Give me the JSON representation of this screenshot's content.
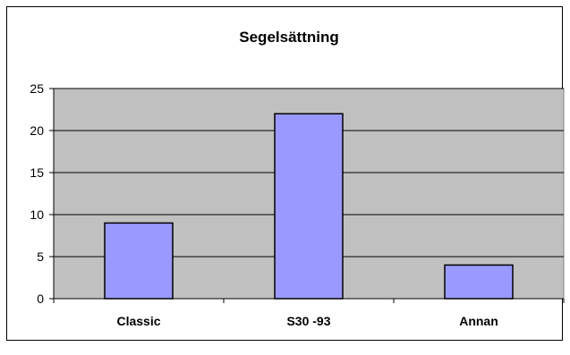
{
  "chart_data": {
    "type": "bar",
    "title": "Segelsättning",
    "categories": [
      "Classic",
      "S30 -93",
      "Annan"
    ],
    "values": [
      9,
      22,
      4
    ],
    "ylim": [
      0,
      25
    ],
    "yticks": [
      0,
      5,
      10,
      15,
      20,
      25
    ],
    "grid": true,
    "legend": "none",
    "colors": {
      "bar_fill": "#9999ff",
      "bar_stroke": "#000000",
      "plot_background": "#c0c0c0",
      "gridline": "#000000"
    }
  }
}
